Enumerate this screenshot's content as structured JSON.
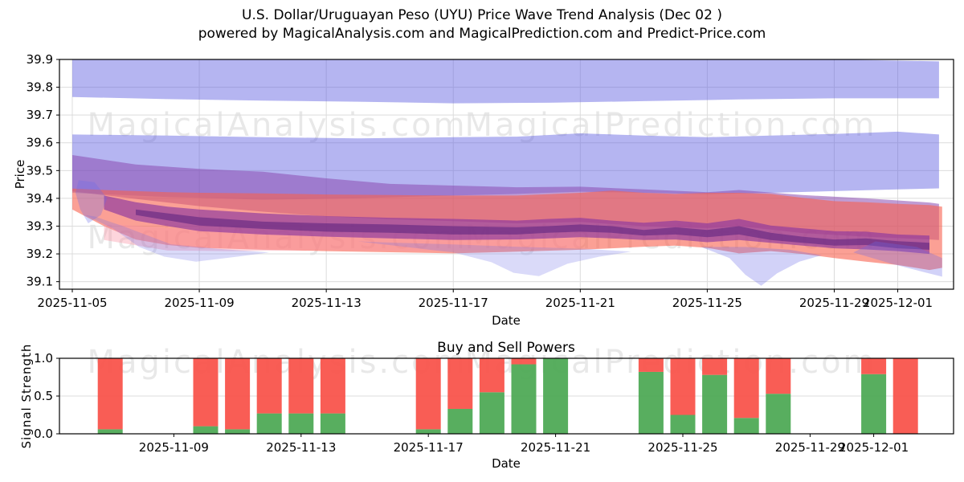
{
  "title": "U.S. Dollar/Uruguayan Peso (UYU) Price Wave Trend Analysis (Dec 02 )",
  "subtitle": "powered by MagicalAnalysis.com and MagicalPrediction.com and Predict-Price.com",
  "watermarks": {
    "left": "MagicalAnalysis.com",
    "right": "MagicalPrediction.com"
  },
  "colors": {
    "buy_green": "#4aa751",
    "sell_red": "#f94f46",
    "band_blue": "#5a5ae0",
    "wisp_blue": "#6a6ae8",
    "band_purple": "#8a4bb0",
    "band_salmon": "#f9604e",
    "band_pink": "#fa96a8",
    "band_core": "#8a35a0",
    "band_dark_core": "#5f2580",
    "grid": "#dcdcdc",
    "frame": "#000000"
  },
  "chart_data": [
    {
      "type": "area",
      "name": "price-wave-trend",
      "xlabel": "Date",
      "ylabel": "Price",
      "ylim": [
        39.07,
        39.9
      ],
      "grid": true,
      "yticks": [
        39.1,
        39.2,
        39.3,
        39.4,
        39.5,
        39.6,
        39.7,
        39.8,
        39.9
      ],
      "xticks": [
        {
          "label": "2025-11-05",
          "day": 0
        },
        {
          "label": "2025-11-09",
          "day": 4
        },
        {
          "label": "2025-11-13",
          "day": 8
        },
        {
          "label": "2025-11-17",
          "day": 12
        },
        {
          "label": "2025-11-21",
          "day": 16
        },
        {
          "label": "2025-11-25",
          "day": 20
        },
        {
          "label": "2025-11-29",
          "day": 24
        },
        {
          "label": "2025-12-01",
          "day": 26
        }
      ],
      "bands": [
        {
          "name": "upper-blue-band",
          "fill": "#5a5ae0",
          "opacity": 0.45,
          "points": [
            [
              0,
              39.9,
              39.765
            ],
            [
              3,
              39.9,
              39.757
            ],
            [
              6,
              39.9,
              39.752
            ],
            [
              9,
              39.9,
              39.748
            ],
            [
              12,
              39.9,
              39.742
            ],
            [
              15,
              39.9,
              39.744
            ],
            [
              18,
              39.9,
              39.75
            ],
            [
              21,
              39.9,
              39.756
            ],
            [
              24,
              39.9,
              39.76
            ],
            [
              27.3,
              39.893,
              39.76
            ]
          ]
        },
        {
          "name": "middle-blue-band",
          "fill": "#5a5ae0",
          "opacity": 0.45,
          "points": [
            [
              0,
              39.63,
              39.42
            ],
            [
              3,
              39.626,
              39.405
            ],
            [
              6,
              39.62,
              39.395
            ],
            [
              9,
              39.616,
              39.4
            ],
            [
              12,
              39.62,
              39.41
            ],
            [
              14,
              39.622,
              39.416
            ],
            [
              16,
              39.634,
              39.424
            ],
            [
              18,
              39.626,
              39.42
            ],
            [
              20,
              39.62,
              39.415
            ],
            [
              22,
              39.626,
              39.42
            ],
            [
              24,
              39.632,
              39.426
            ],
            [
              26,
              39.64,
              39.432
            ],
            [
              27.3,
              39.63,
              39.436
            ]
          ]
        },
        {
          "name": "purple-wedge-band",
          "fill": "#8a4bb0",
          "opacity": 0.55,
          "points": [
            [
              0,
              39.556,
              39.425
            ],
            [
              2,
              39.522,
              39.398
            ],
            [
              4,
              39.506,
              39.372
            ],
            [
              6,
              39.496,
              39.352
            ],
            [
              8,
              39.472,
              39.335
            ],
            [
              10,
              39.452,
              39.325
            ],
            [
              12,
              39.446,
              39.318
            ],
            [
              14,
              39.44,
              39.31
            ],
            [
              16,
              39.442,
              39.315
            ],
            [
              18,
              39.432,
              39.3
            ],
            [
              20,
              39.422,
              39.292
            ],
            [
              21,
              39.43,
              39.3
            ],
            [
              23,
              39.412,
              39.275
            ],
            [
              25,
              39.4,
              39.262
            ],
            [
              27,
              39.385,
              39.252
            ],
            [
              27.3,
              39.38,
              39.25
            ]
          ]
        },
        {
          "name": "salmon-band",
          "fill": "#f9604e",
          "opacity": 0.6,
          "points": [
            [
              0,
              39.435,
              39.36
            ],
            [
              1,
              39.43,
              39.3
            ],
            [
              2,
              39.426,
              39.252
            ],
            [
              3,
              39.422,
              39.232
            ],
            [
              4,
              39.42,
              39.222
            ],
            [
              6,
              39.418,
              39.215
            ],
            [
              8,
              39.414,
              39.21
            ],
            [
              10,
              39.412,
              39.206
            ],
            [
              12,
              39.41,
              39.202
            ],
            [
              14,
              39.41,
              39.208
            ],
            [
              16,
              39.42,
              39.215
            ],
            [
              17,
              39.428,
              39.22
            ],
            [
              18,
              39.42,
              39.226
            ],
            [
              19,
              39.416,
              39.23
            ],
            [
              20,
              39.42,
              39.222
            ],
            [
              21,
              39.42,
              39.202
            ],
            [
              22,
              39.416,
              39.21
            ],
            [
              23,
              39.402,
              39.2
            ],
            [
              24,
              39.39,
              39.185
            ],
            [
              25,
              39.386,
              39.172
            ],
            [
              26,
              39.38,
              39.16
            ],
            [
              27,
              39.376,
              39.142
            ],
            [
              27.4,
              39.37,
              39.15
            ]
          ]
        },
        {
          "name": "pink-under-band",
          "fill": "#fa96a8",
          "opacity": 0.4,
          "points": [
            [
              1,
              39.31,
              39.25
            ],
            [
              3,
              39.292,
              39.212
            ],
            [
              5,
              39.286,
              39.21
            ],
            [
              8,
              39.28,
              39.214
            ],
            [
              11,
              39.272,
              39.21
            ],
            [
              14,
              39.262,
              39.216
            ],
            [
              16,
              39.26,
              39.222
            ]
          ]
        },
        {
          "name": "magenta-core-band",
          "fill": "#8a35a0",
          "opacity": 0.65,
          "points": [
            [
              1,
              39.41,
              39.36
            ],
            [
              2,
              39.386,
              39.32
            ],
            [
              3,
              39.37,
              39.3
            ],
            [
              4,
              39.36,
              39.282
            ],
            [
              6,
              39.346,
              39.27
            ],
            [
              8,
              39.336,
              39.262
            ],
            [
              10,
              39.33,
              39.256
            ],
            [
              12,
              39.326,
              39.25
            ],
            [
              14,
              39.32,
              39.252
            ],
            [
              15,
              39.326,
              39.256
            ],
            [
              16,
              39.33,
              39.26
            ],
            [
              17,
              39.32,
              39.256
            ],
            [
              18,
              39.312,
              39.25
            ],
            [
              19,
              39.32,
              39.252
            ],
            [
              20,
              39.31,
              39.242
            ],
            [
              21,
              39.326,
              39.25
            ],
            [
              22,
              39.302,
              39.24
            ],
            [
              23,
              39.292,
              39.23
            ],
            [
              24,
              39.282,
              39.22
            ],
            [
              25,
              39.28,
              39.216
            ],
            [
              26,
              39.27,
              39.21
            ],
            [
              27,
              39.266,
              39.2
            ]
          ]
        },
        {
          "name": "dark-core-band",
          "fill": "#5f2580",
          "opacity": 0.6,
          "points": [
            [
              2,
              39.36,
              39.34
            ],
            [
              4,
              39.332,
              39.302
            ],
            [
              6,
              39.316,
              39.29
            ],
            [
              8,
              39.31,
              39.28
            ],
            [
              10,
              39.306,
              39.276
            ],
            [
              12,
              39.3,
              39.27
            ],
            [
              14,
              39.296,
              39.27
            ],
            [
              15,
              39.3,
              39.276
            ],
            [
              16,
              39.306,
              39.28
            ],
            [
              17,
              39.3,
              39.276
            ],
            [
              18,
              39.286,
              39.266
            ],
            [
              19,
              39.296,
              39.27
            ],
            [
              20,
              39.286,
              39.26
            ],
            [
              21,
              39.3,
              39.27
            ],
            [
              22,
              39.276,
              39.25
            ],
            [
              23,
              39.262,
              39.24
            ],
            [
              24,
              39.252,
              39.23
            ],
            [
              25,
              39.256,
              39.232
            ],
            [
              26,
              39.246,
              39.22
            ],
            [
              27,
              39.24,
              39.215
            ]
          ]
        }
      ],
      "wisps": [
        {
          "name": "left-spike-wisp",
          "fill": "#6a6ae8",
          "opacity": 0.3,
          "points": [
            [
              0.2,
              39.465
            ],
            [
              0.7,
              39.458
            ],
            [
              1.1,
              39.4
            ],
            [
              0.9,
              39.34
            ],
            [
              0.5,
              39.31
            ],
            [
              0.25,
              39.36
            ],
            [
              0.1,
              39.42
            ]
          ]
        },
        {
          "name": "left-low-wisp",
          "fill": "#6a6ae8",
          "opacity": 0.25,
          "points": [
            [
              0.4,
              39.34
            ],
            [
              1.3,
              39.29
            ],
            [
              2.1,
              39.225
            ],
            [
              2.9,
              39.19
            ],
            [
              3.9,
              39.172
            ],
            [
              5.2,
              39.19
            ],
            [
              6.2,
              39.205
            ],
            [
              4.6,
              39.218
            ],
            [
              3.1,
              39.235
            ],
            [
              1.6,
              39.3
            ],
            [
              0.7,
              39.335
            ]
          ]
        },
        {
          "name": "mid-dip-wisp",
          "fill": "#6a6ae8",
          "opacity": 0.25,
          "points": [
            [
              9,
              39.245
            ],
            [
              10.5,
              39.225
            ],
            [
              12,
              39.205
            ],
            [
              13.2,
              39.17
            ],
            [
              13.9,
              39.132
            ],
            [
              14.7,
              39.12
            ],
            [
              15.6,
              39.165
            ],
            [
              16.6,
              39.19
            ],
            [
              17.6,
              39.208
            ],
            [
              16.2,
              39.218
            ],
            [
              14.2,
              39.225
            ],
            [
              11.8,
              39.235
            ],
            [
              10.2,
              39.24
            ]
          ]
        },
        {
          "name": "deep-dip-wisp",
          "fill": "#6a6ae8",
          "opacity": 0.3,
          "points": [
            [
              19.8,
              39.225
            ],
            [
              20.7,
              39.185
            ],
            [
              21.2,
              39.125
            ],
            [
              21.7,
              39.085
            ],
            [
              22.2,
              39.13
            ],
            [
              22.9,
              39.172
            ],
            [
              23.6,
              39.195
            ],
            [
              22.6,
              39.215
            ],
            [
              21.2,
              39.225
            ]
          ]
        },
        {
          "name": "right-tail-wisp",
          "fill": "#6a6ae8",
          "opacity": 0.3,
          "points": [
            [
              24.6,
              39.205
            ],
            [
              25.8,
              39.165
            ],
            [
              26.8,
              39.135
            ],
            [
              27.4,
              39.118
            ],
            [
              27.4,
              39.185
            ],
            [
              26.6,
              39.225
            ],
            [
              25.3,
              39.245
            ]
          ]
        }
      ]
    },
    {
      "type": "bar",
      "name": "buy-sell-powers",
      "title": "Buy and Sell Powers",
      "xlabel": "Date",
      "ylabel": "Signal Strength",
      "ylim": [
        0,
        1.0
      ],
      "stacked": true,
      "grid": true,
      "yticks": [
        0,
        0.5,
        1
      ],
      "xticks": [
        {
          "label": "2025-11-09",
          "day": 4
        },
        {
          "label": "2025-11-13",
          "day": 8
        },
        {
          "label": "2025-11-17",
          "day": 12
        },
        {
          "label": "2025-11-21",
          "day": 16
        },
        {
          "label": "2025-11-25",
          "day": 20
        },
        {
          "label": "2025-11-29",
          "day": 24
        },
        {
          "label": "2025-12-01",
          "day": 26
        }
      ],
      "categories": [
        "2025-11-07",
        "2025-11-10",
        "2025-11-11",
        "2025-11-12",
        "2025-11-13",
        "2025-11-14",
        "2025-11-17",
        "2025-11-18",
        "2025-11-19",
        "2025-11-20",
        "2025-11-21",
        "2025-11-24",
        "2025-11-25",
        "2025-11-26",
        "2025-11-27",
        "2025-11-28",
        "2025-12-01",
        "2025-12-02"
      ],
      "day_index": [
        2,
        5,
        6,
        7,
        8,
        9,
        12,
        13,
        14,
        15,
        16,
        19,
        20,
        21,
        22,
        23,
        26,
        27
      ],
      "series": [
        {
          "name": "Buy",
          "color": "#4aa751",
          "values": [
            0.06,
            0.1,
            0.06,
            0.27,
            0.27,
            0.27,
            0.06,
            0.33,
            0.55,
            0.92,
            1.0,
            0.82,
            0.25,
            0.78,
            0.21,
            0.53,
            0.79,
            0.0
          ]
        },
        {
          "name": "Sell",
          "color": "#f94f46",
          "values": [
            0.94,
            0.9,
            0.94,
            0.73,
            0.73,
            0.73,
            0.94,
            0.67,
            0.45,
            0.08,
            0.0,
            0.18,
            0.75,
            0.22,
            0.79,
            0.47,
            0.21,
            1.0
          ]
        }
      ]
    }
  ]
}
